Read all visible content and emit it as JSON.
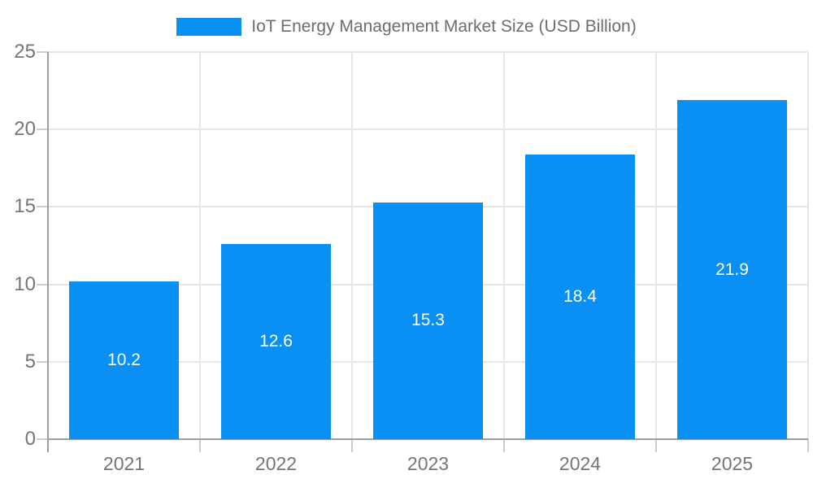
{
  "chart_data": {
    "type": "bar",
    "title": "IoT Energy Management Market Size (USD Billion)",
    "legend_entries": [
      {
        "label": "IoT Energy Management Market Size (USD Billion)",
        "color": "#0a90f4"
      }
    ],
    "legend_position": "top-center",
    "categories": [
      "2021",
      "2022",
      "2023",
      "2024",
      "2025"
    ],
    "values": [
      10.2,
      12.6,
      15.3,
      18.4,
      21.9
    ],
    "value_labels": [
      "10.2",
      "12.6",
      "15.3",
      "18.4",
      "21.9"
    ],
    "xlabel": "",
    "ylabel": "",
    "ylim": [
      0,
      25
    ],
    "yticks": [
      0,
      5,
      10,
      15,
      20,
      25
    ],
    "grid": true,
    "colors": {
      "bar": "#0a90f4",
      "grid": "#e6e6e6",
      "axis": "#9e9e9e",
      "tick": "#cccccc",
      "tick_text": "#757575",
      "legend_text": "#6d6d6d",
      "value_text": "#ffffff",
      "background": "#ffffff"
    }
  }
}
